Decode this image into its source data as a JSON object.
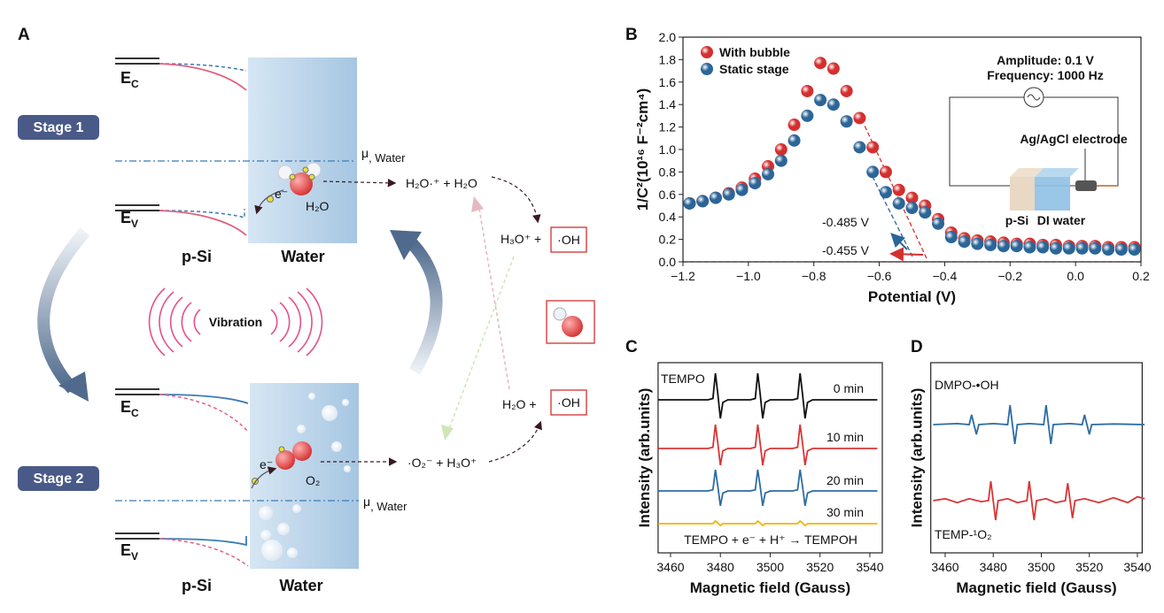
{
  "panel_labels": [
    "A",
    "B",
    "C",
    "D"
  ],
  "diagram": {
    "stage1": "Stage 1",
    "stage2": "Stage 2",
    "ec": {
      "main": "E",
      "sub": "C"
    },
    "ev": {
      "main": "E",
      "sub": "V"
    },
    "mu": {
      "main": "μ",
      "sub": ", Water"
    },
    "psi": "p-Si",
    "water": "Water",
    "vibration": "Vibration",
    "h2o": "H₂O",
    "electron": "e⁻",
    "o2": "O₂",
    "reaction1": "H₂O·⁺ +  H₂O",
    "reaction2": "H₃O⁺ +",
    "reaction3": "H₂O  +",
    "radical": "·OH",
    "reaction4": "·O₂⁻   + H₃O⁺"
  },
  "chart_data": [
    {
      "type": "scatter",
      "xlabel": "Potential (V)",
      "ylabel": "1/C²(10¹⁶ F⁻²cm⁴)",
      "x": [
        -1.18,
        -1.14,
        -1.1,
        -1.06,
        -1.02,
        -0.98,
        -0.94,
        -0.9,
        -0.86,
        -0.82,
        -0.78,
        -0.74,
        -0.7,
        -0.66,
        -0.62,
        -0.58,
        -0.54,
        -0.5,
        -0.46,
        -0.42,
        -0.38,
        -0.34,
        -0.3,
        -0.26,
        -0.22,
        -0.18,
        -0.14,
        -0.1,
        -0.06,
        -0.02,
        0.02,
        0.06,
        0.1,
        0.14,
        0.18
      ],
      "series": [
        {
          "name": "With bubble",
          "color": "#d42f2f",
          "values": [
            0.52,
            0.54,
            0.57,
            0.61,
            0.66,
            0.74,
            0.85,
            1.0,
            1.22,
            1.52,
            1.77,
            1.72,
            1.52,
            1.28,
            1.02,
            0.8,
            0.64,
            0.57,
            0.5,
            0.38,
            0.26,
            0.21,
            0.19,
            0.18,
            0.17,
            0.16,
            0.16,
            0.15,
            0.15,
            0.14,
            0.14,
            0.14,
            0.13,
            0.13,
            0.13
          ]
        },
        {
          "name": "Static stage",
          "color": "#2c6597",
          "values": [
            0.52,
            0.54,
            0.57,
            0.6,
            0.64,
            0.7,
            0.78,
            0.9,
            1.08,
            1.3,
            1.44,
            1.4,
            1.25,
            1.02,
            0.8,
            0.62,
            0.52,
            0.48,
            0.44,
            0.34,
            0.22,
            0.18,
            0.16,
            0.15,
            0.14,
            0.14,
            0.13,
            0.13,
            0.12,
            0.12,
            0.12,
            0.12,
            0.11,
            0.11,
            0.11
          ]
        }
      ],
      "xlim": [
        -1.2,
        0.2
      ],
      "ylim": [
        0,
        2
      ],
      "xticks": [
        {
          "value": -1.2,
          "label": "−1.2"
        },
        {
          "value": -1.0,
          "label": "−1.0"
        },
        {
          "value": -0.8,
          "label": "−0.8"
        },
        {
          "value": -0.6,
          "label": "−0.6"
        },
        {
          "value": -0.4,
          "label": "−0.4"
        },
        {
          "value": -0.2,
          "label": "−0.2"
        },
        {
          "value": 0,
          "label": "0.0"
        },
        0.2
      ],
      "yticks": [
        {
          "value": 0,
          "label": "0.0"
        },
        0.2,
        0.4,
        0.6,
        0.8,
        {
          "value": 1,
          "label": "1.0"
        },
        1.2,
        1.4,
        1.6,
        1.8,
        {
          "value": 2,
          "label": "2.0"
        }
      ],
      "hline": 0,
      "legend": "upper left",
      "annotations": [
        "-0.485 V",
        "-0.455 V"
      ],
      "inset": {
        "amplitude": "Amplitude: 0.1 V",
        "frequency": "Frequency: 1000 Hz",
        "electrode": "Ag/AgCl electrode",
        "psi": "p-Si",
        "water": "DI water"
      }
    },
    {
      "type": "line",
      "xlabel": "Magnetic field (Gauss)",
      "ylabel": "Intensity (arb.units)",
      "x": [
        3455,
        3465,
        3475,
        3477,
        3478,
        3479,
        3480,
        3481,
        3483,
        3488,
        3492,
        3494,
        3495,
        3496,
        3497,
        3498,
        3500,
        3505,
        3509,
        3511,
        3512,
        3513,
        3514,
        3515,
        3517,
        3525,
        3535,
        3543
      ],
      "series": [
        {
          "name": "0 min",
          "color": "#111111",
          "values": [
            0,
            0,
            0,
            0.05,
            1,
            0.2,
            -0.7,
            -0.1,
            0,
            0,
            0,
            0.05,
            1,
            0.2,
            -0.7,
            -0.1,
            0,
            0,
            0,
            0.05,
            1,
            0.2,
            -0.7,
            -0.1,
            0,
            0,
            0,
            0
          ]
        },
        {
          "name": "10 min",
          "color": "#d93535",
          "values": [
            0,
            0,
            0,
            0.045,
            0.9,
            0.18,
            -0.63,
            -0.09,
            0,
            0,
            0,
            0.045,
            0.9,
            0.18,
            -0.63,
            -0.09,
            0,
            0,
            0,
            0.045,
            0.9,
            0.18,
            -0.63,
            -0.09,
            0,
            0,
            0,
            0
          ]
        },
        {
          "name": "20 min",
          "color": "#2d6ca3",
          "values": [
            0,
            0,
            0,
            0.04,
            0.8,
            0.16,
            -0.56,
            -0.08,
            0,
            0,
            0,
            0.04,
            0.8,
            0.16,
            -0.56,
            -0.08,
            0,
            0,
            0,
            0.04,
            0.8,
            0.16,
            -0.56,
            -0.08,
            0,
            0,
            0,
            0
          ]
        },
        {
          "name": "30 min",
          "color": "#f0b400",
          "values": [
            0,
            0,
            0,
            0,
            0.1,
            0.02,
            -0.07,
            0,
            0,
            0,
            0,
            0,
            0.1,
            0.02,
            -0.07,
            0,
            0,
            0,
            0,
            0,
            0.1,
            0.02,
            -0.07,
            0,
            0,
            0,
            0,
            0
          ]
        }
      ],
      "xlim": [
        3455,
        3545
      ],
      "xticks": [
        3460,
        3480,
        3500,
        3520,
        3540
      ],
      "annotations": [
        "TEMPO",
        "TEMPO + e⁻ + H⁺ → TEMPOH"
      ]
    },
    {
      "type": "line",
      "xlabel": "Magnetic field (Gauss)",
      "ylabel": "Intensity (arb.units)",
      "series": [
        {
          "name": "DMPO-•OH",
          "color": "#2d6ca3",
          "x": [
            3455,
            3465,
            3470,
            3471,
            3473,
            3474,
            3480,
            3486,
            3487,
            3489,
            3490,
            3495,
            3501,
            3502,
            3504,
            3505,
            3512,
            3517,
            3518,
            3520,
            3521,
            3530,
            3543
          ],
          "values": [
            0,
            0.05,
            0,
            0.5,
            -0.5,
            0,
            0.05,
            0,
            1,
            -1,
            0,
            0.05,
            0,
            1,
            -1,
            0,
            0.05,
            0,
            0.5,
            -0.5,
            0,
            0.03,
            0
          ]
        },
        {
          "name": "TEMP-¹O₂",
          "color": "#d93535",
          "x": [
            3455,
            3460,
            3465,
            3470,
            3475,
            3478,
            3479,
            3481,
            3482,
            3486,
            3490,
            3494,
            3495,
            3497,
            3498,
            3502,
            3506,
            3510,
            3511,
            3513,
            3514,
            3518,
            3524,
            3530,
            3536,
            3540,
            3543
          ],
          "values": [
            0,
            0.1,
            -0.1,
            0.1,
            -0.05,
            0,
            1,
            -1,
            0,
            0.1,
            -0.1,
            0,
            1,
            -1,
            0,
            0.1,
            -0.1,
            0,
            0.9,
            -0.9,
            0,
            0.1,
            -0.1,
            0.15,
            -0.1,
            0.2,
            0.1
          ]
        }
      ],
      "xlim": [
        3454,
        3542
      ],
      "xticks": [
        3460,
        3480,
        3500,
        3520,
        3540
      ]
    }
  ]
}
